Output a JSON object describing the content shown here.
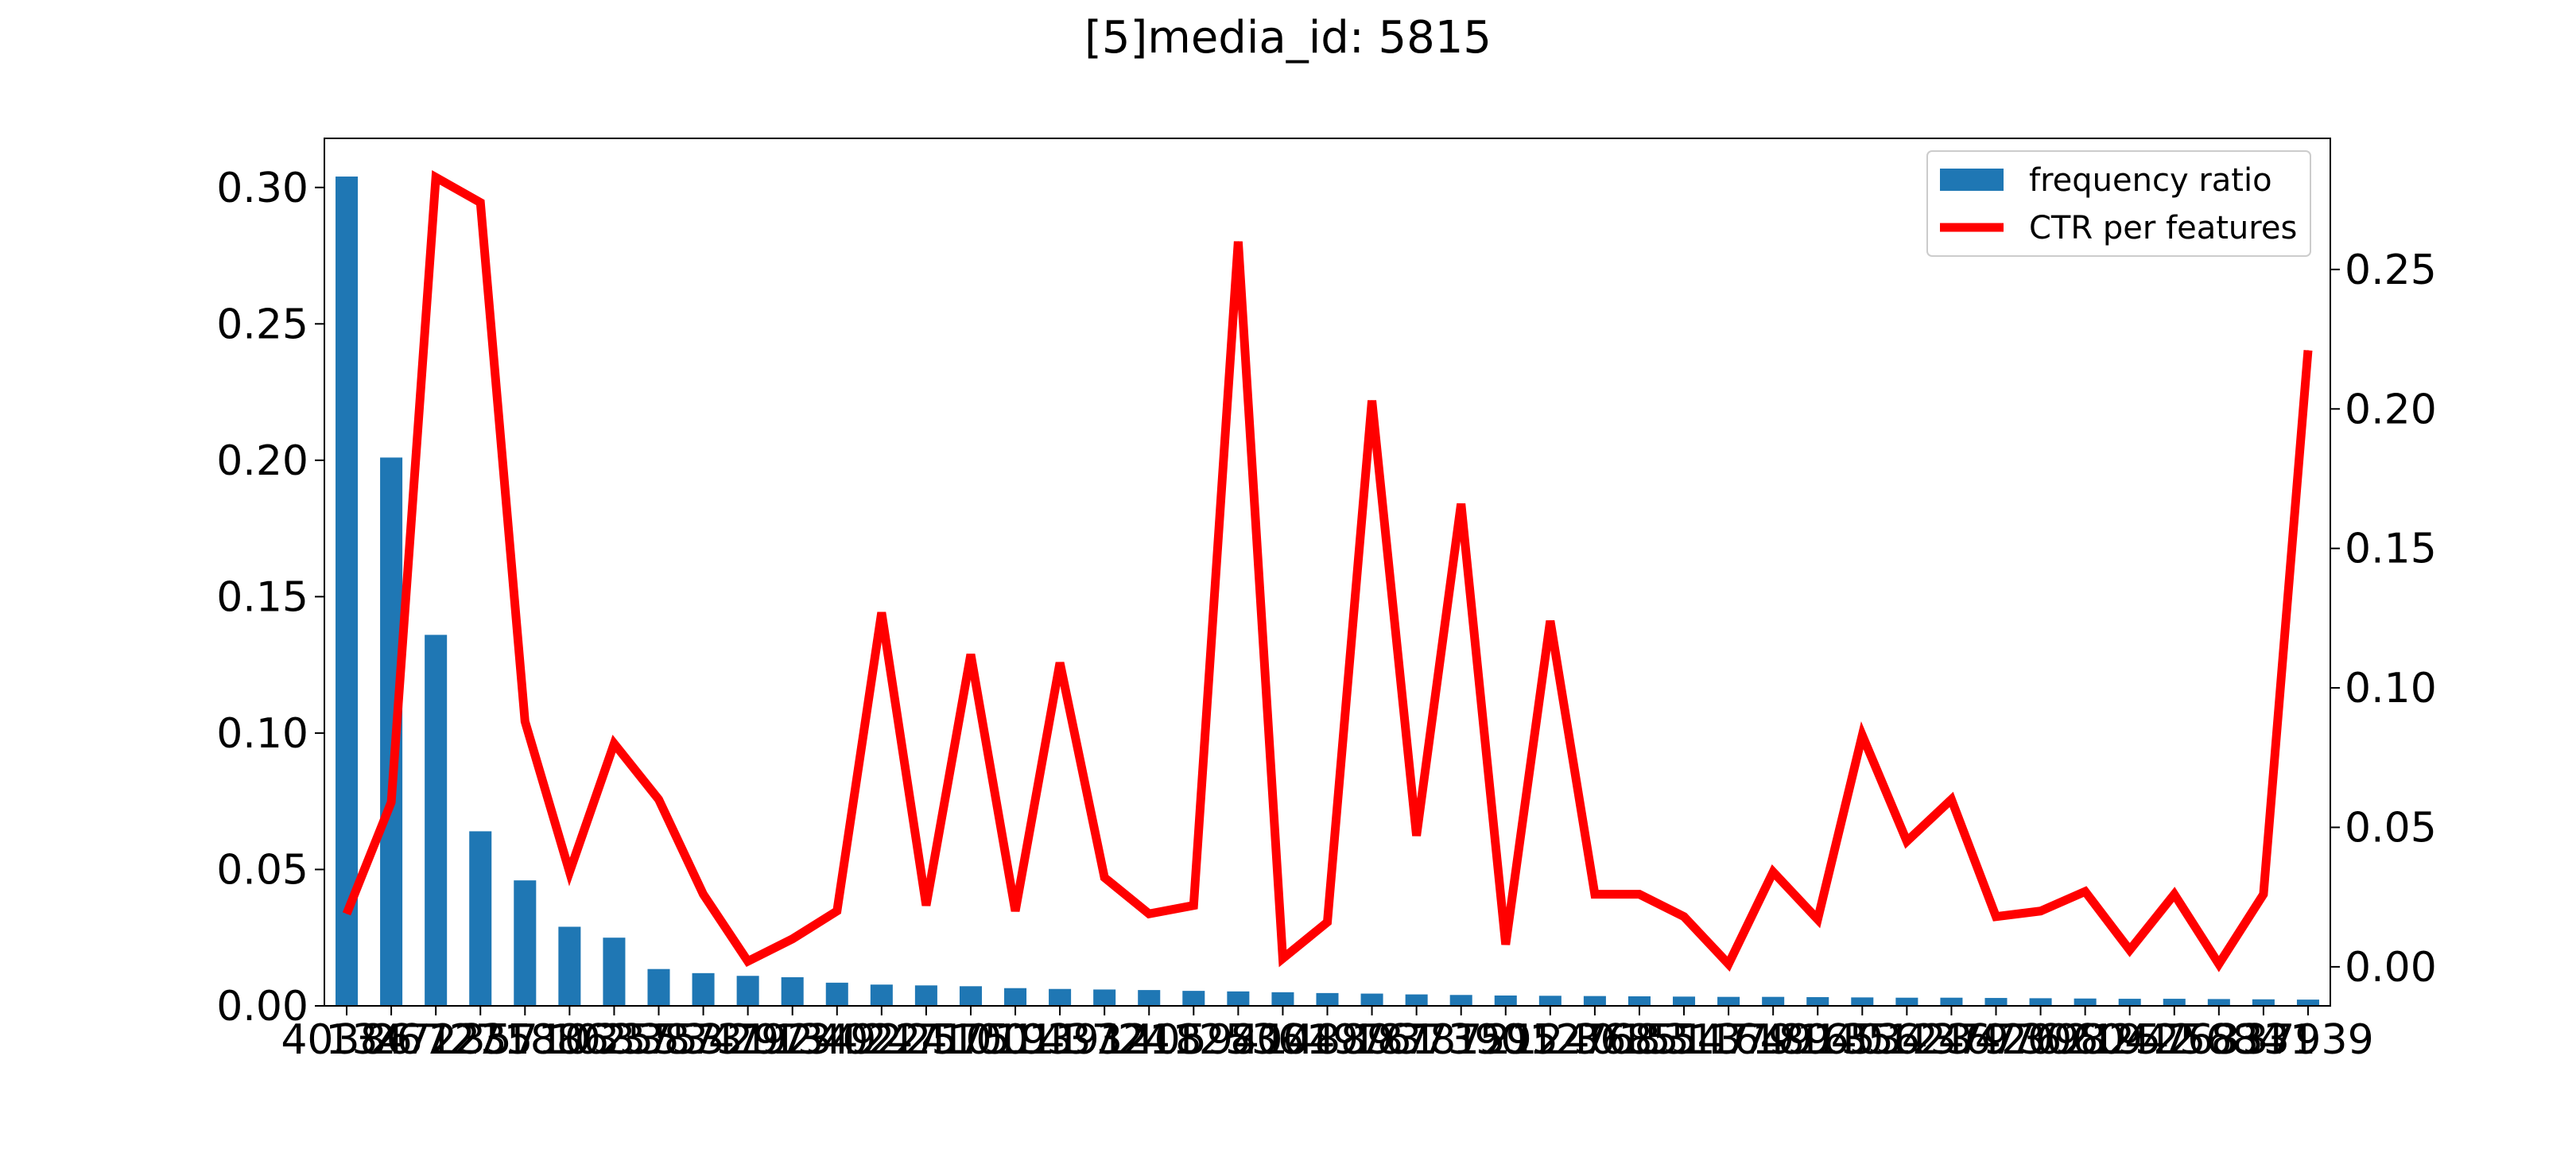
{
  "chart_data": {
    "type": "bar",
    "title": "[5]media_id: 5815",
    "xlabel": "",
    "ylabel": "",
    "categories": [
      "40386",
      "13472",
      "26727",
      "1235",
      "35710",
      "18863",
      "10255",
      "33753",
      "38731",
      "34792",
      "29734",
      "13492",
      "40224",
      "24710",
      "25751",
      "10011",
      "19391",
      "43724",
      "3218",
      "40594",
      "12536",
      "8004",
      "14889",
      "19761",
      "18787",
      "37390",
      "1595",
      "21240",
      "12768",
      "36851",
      "15547",
      "31379",
      "16491",
      "18940",
      "16534",
      "35623",
      "12467",
      "37976",
      "42098",
      "30604",
      "21942",
      "25763",
      "25684",
      "8331",
      "37939"
    ],
    "category_labels_visible": [
      "40386",
      "13472",
      "26727",
      "1235",
      "35710",
      "18863",
      "10255",
      "33753",
      "38731",
      "34792",
      "29734",
      "13492",
      "40224",
      "24710",
      "25751",
      "10011",
      "19391",
      "43724",
      "3218",
      "40594",
      "12536",
      "8004",
      "14889",
      "19761",
      "18787",
      "37390",
      "1595",
      "21240",
      "12768",
      "36851",
      "15547",
      "31379",
      "16491",
      "18940",
      "16534",
      "35623",
      "12467",
      "37976",
      "42098",
      "30604",
      "21942",
      "25763",
      "25684",
      "8331",
      "37939"
    ],
    "series": [
      {
        "name": "frequency ratio",
        "type": "bar",
        "axis": "left",
        "color": "#1f77b4",
        "values": [
          0.304,
          0.201,
          0.136,
          0.064,
          0.046,
          0.029,
          0.025,
          0.0135,
          0.012,
          0.011,
          0.0105,
          0.0085,
          0.0078,
          0.0075,
          0.0072,
          0.0065,
          0.0062,
          0.006,
          0.0058,
          0.0055,
          0.0053,
          0.005,
          0.0047,
          0.0045,
          0.0042,
          0.004,
          0.0038,
          0.0037,
          0.0036,
          0.0035,
          0.0034,
          0.0033,
          0.0033,
          0.0032,
          0.0031,
          0.003,
          0.003,
          0.0029,
          0.0028,
          0.0027,
          0.0026,
          0.0026,
          0.0025,
          0.0024,
          0.0023
        ]
      },
      {
        "name": "CTR per features",
        "type": "line",
        "axis": "right",
        "color": "#ff0000",
        "values": [
          0.019,
          0.059,
          0.283,
          0.274,
          0.088,
          0.034,
          0.08,
          0.06,
          0.026,
          0.002,
          0.01,
          0.02,
          0.127,
          0.022,
          0.112,
          0.02,
          0.109,
          0.032,
          0.019,
          0.022,
          0.26,
          0.003,
          0.016,
          0.203,
          0.047,
          0.166,
          0.008,
          0.124,
          0.026,
          0.026,
          0.018,
          0.001,
          0.034,
          0.017,
          0.083,
          0.045,
          0.06,
          0.018,
          0.02,
          0.027,
          0.006,
          0.026,
          0.001,
          0.026,
          0.221
        ]
      }
    ],
    "left_axis": {
      "ylim": [
        0,
        0.318
      ],
      "ticks": [
        0.0,
        0.05,
        0.1,
        0.15,
        0.2,
        0.25,
        0.3
      ],
      "tick_labels": [
        "0.00",
        "0.05",
        "0.10",
        "0.15",
        "0.20",
        "0.25",
        "0.30"
      ]
    },
    "right_axis": {
      "ylim": [
        -0.014,
        0.297
      ],
      "ticks": [
        0.0,
        0.05,
        0.1,
        0.15,
        0.2,
        0.25
      ],
      "tick_labels": [
        "0.00",
        "0.05",
        "0.10",
        "0.15",
        "0.20",
        "0.25"
      ]
    },
    "grid": false,
    "legend": {
      "position": "upper right",
      "entries": [
        "frequency ratio",
        "CTR per features"
      ]
    }
  }
}
